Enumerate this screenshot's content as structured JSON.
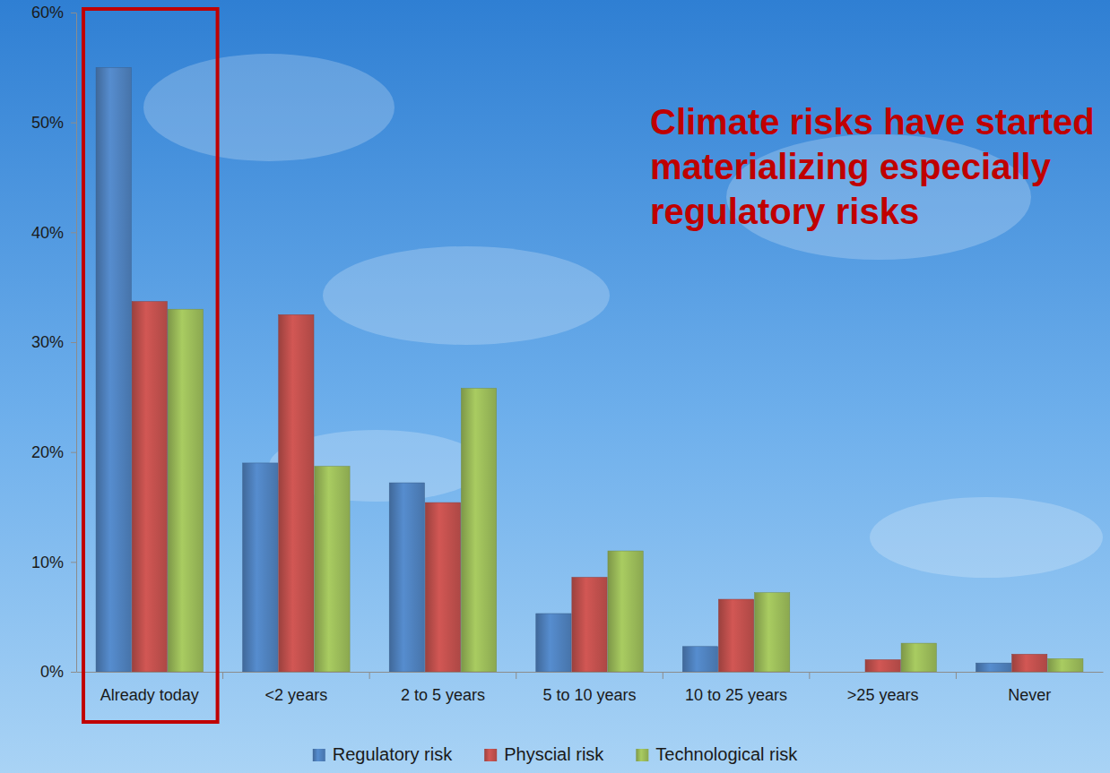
{
  "chart_data": {
    "type": "bar",
    "annotation": "Climate risks have started materializing especially regulatory risks",
    "categories": [
      "Already today",
      "<2 years",
      "2 to 5 years",
      "5 to 10 years",
      "10 to 25 years",
      ">25 years",
      "Never"
    ],
    "series": [
      {
        "name": "Regulatory risk",
        "color": "#4f81bd",
        "values": [
          55,
          19,
          17.2,
          5.3,
          2.3,
          0,
          0.8
        ]
      },
      {
        "name": "Physcial risk",
        "color": "#c0504d",
        "values": [
          33.7,
          32.5,
          15.4,
          8.6,
          6.6,
          1.1,
          1.6
        ]
      },
      {
        "name": "Technological risk",
        "color": "#9bbb59",
        "values": [
          33,
          18.7,
          25.8,
          11,
          7.2,
          2.6,
          1.2
        ]
      }
    ],
    "ylim": [
      0,
      60
    ],
    "yticks": [
      {
        "value": 0,
        "label": "0%"
      },
      {
        "value": 10,
        "label": "10%"
      },
      {
        "value": 20,
        "label": "20%"
      },
      {
        "value": 30,
        "label": "30%"
      },
      {
        "value": 40,
        "label": "40%"
      },
      {
        "value": 50,
        "label": "50%"
      },
      {
        "value": 60,
        "label": "60%"
      }
    ],
    "legend": "bottom"
  }
}
